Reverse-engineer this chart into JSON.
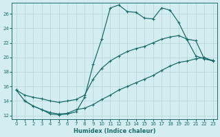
{
  "xlabel": "Humidex (Indice chaleur)",
  "bg_color": "#d4edf0",
  "grid_color": "#b8d8dc",
  "line_color": "#1a6b6b",
  "xlim": [
    -0.5,
    23.5
  ],
  "ylim": [
    11.5,
    27.5
  ],
  "xticks": [
    0,
    1,
    2,
    3,
    4,
    5,
    6,
    7,
    8,
    9,
    10,
    11,
    12,
    13,
    14,
    15,
    16,
    17,
    18,
    19,
    20,
    21,
    22,
    23
  ],
  "yticks": [
    12,
    14,
    16,
    18,
    20,
    22,
    24,
    26
  ],
  "line1_x": [
    0,
    1,
    2,
    3,
    4,
    5,
    6,
    7,
    8,
    9,
    10,
    11,
    12,
    13,
    14,
    15,
    16,
    17,
    18,
    19,
    20,
    21,
    22,
    23
  ],
  "line1_y": [
    15.5,
    14.0,
    13.3,
    12.8,
    12.2,
    12.1,
    12.2,
    12.5,
    14.5,
    19.0,
    22.5,
    26.8,
    27.2,
    26.3,
    26.2,
    25.4,
    25.3,
    26.8,
    26.5,
    24.8,
    22.4,
    20.2,
    19.8,
    19.6
  ],
  "line2_x": [
    0,
    1,
    2,
    3,
    4,
    5,
    6,
    7,
    8,
    9,
    10,
    11,
    12,
    13,
    14,
    15,
    16,
    17,
    18,
    19,
    20,
    21,
    22,
    23
  ],
  "line2_y": [
    15.5,
    14.8,
    14.5,
    14.3,
    14.0,
    13.8,
    14.0,
    14.2,
    14.8,
    17.0,
    18.5,
    19.5,
    20.2,
    20.8,
    21.2,
    21.5,
    22.0,
    22.5,
    22.8,
    23.0,
    22.5,
    22.3,
    19.8,
    19.5
  ],
  "line3_x": [
    1,
    2,
    3,
    4,
    5,
    6,
    7,
    8,
    9,
    10,
    11,
    12,
    13,
    14,
    15,
    16,
    17,
    18,
    19,
    20,
    21,
    22,
    23
  ],
  "line3_y": [
    14.0,
    13.3,
    12.8,
    12.4,
    12.2,
    12.3,
    12.8,
    13.0,
    13.5,
    14.2,
    14.8,
    15.5,
    16.0,
    16.5,
    17.0,
    17.5,
    18.2,
    18.8,
    19.3,
    19.5,
    19.8,
    20.0,
    19.5
  ]
}
